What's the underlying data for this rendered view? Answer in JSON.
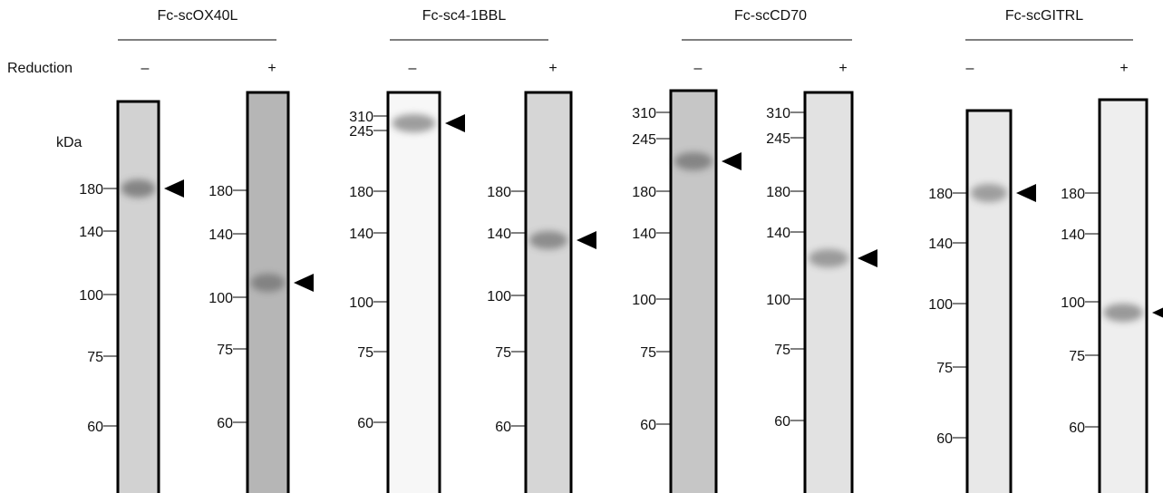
{
  "reduction_label": "Reduction",
  "unit_label": "kDa",
  "groups": [
    {
      "title": "Fc-scOX40L",
      "signs": [
        "–",
        "+"
      ],
      "lanes": [
        {
          "markers": [
            180,
            140,
            100,
            75,
            60
          ]
        },
        {
          "markers": [
            180,
            140,
            100,
            75,
            60
          ]
        }
      ]
    },
    {
      "title": "Fc-sc4-1BBL",
      "signs": [
        "–",
        "+"
      ],
      "lanes": [
        {
          "markers": [
            310,
            245,
            180,
            140,
            100,
            75,
            60
          ]
        },
        {
          "markers": [
            180,
            140,
            100,
            75,
            60
          ]
        }
      ]
    },
    {
      "title": "Fc-scCD70",
      "signs": [
        "–",
        "+"
      ],
      "lanes": [
        {
          "markers": [
            310,
            245,
            180,
            140,
            100,
            75,
            60
          ]
        },
        {
          "markers": [
            310,
            245,
            180,
            140,
            100,
            75,
            60
          ]
        }
      ]
    },
    {
      "title": "Fc-scGITRL",
      "signs": [
        "–",
        "+"
      ],
      "lanes": [
        {
          "markers": [
            180,
            140,
            100,
            75,
            60
          ]
        },
        {
          "markers": [
            180,
            140,
            100,
            75,
            60
          ]
        }
      ]
    }
  ]
}
